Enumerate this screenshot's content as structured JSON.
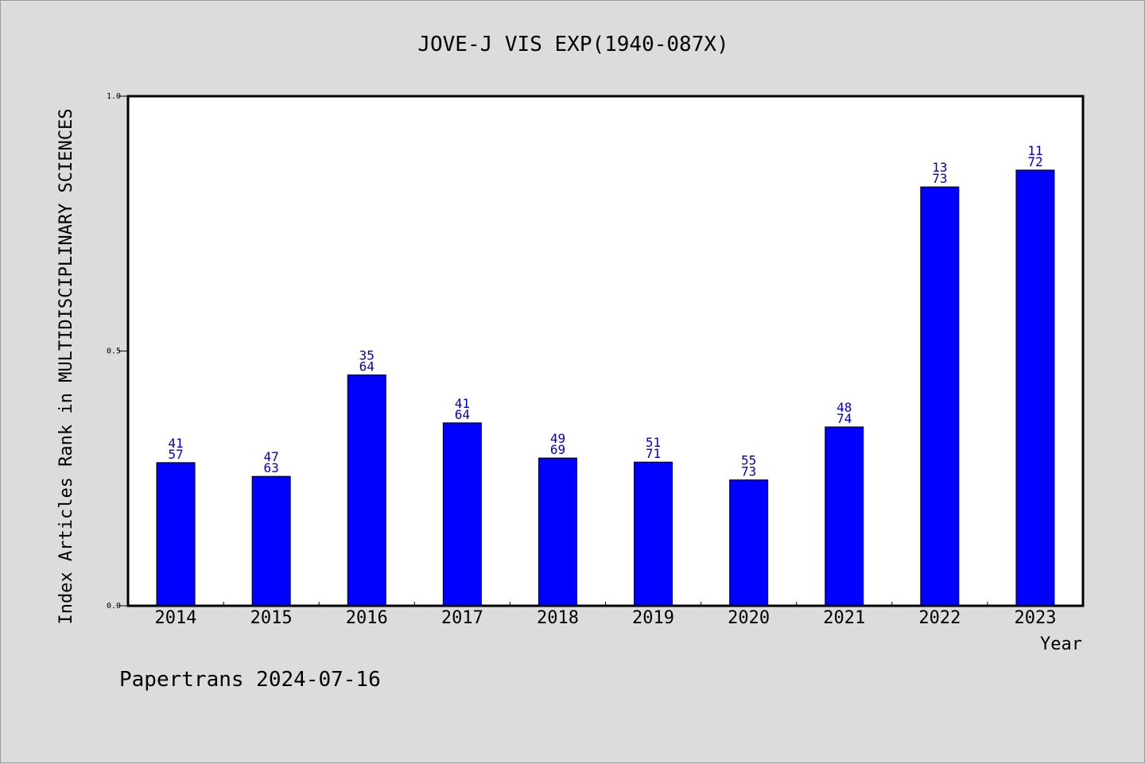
{
  "colors": {
    "background": "#dcdcdc",
    "plot_background": "#ffffff",
    "bar": "#0000ff",
    "label": "#0000cc"
  },
  "footer": "Papertrans 2024-07-16",
  "chart_data": {
    "type": "bar",
    "title": "JOVE-J VIS EXP(1940-087X)",
    "xlabel": "Year",
    "ylabel": "Index Articles Rank in MULTIDISCIPLINARY SCIENCES",
    "ylim": [
      0,
      1
    ],
    "yticks": [
      "0.0",
      "0.5",
      "1.0"
    ],
    "grid": false,
    "categories": [
      "2014",
      "2015",
      "2016",
      "2017",
      "2018",
      "2019",
      "2020",
      "2021",
      "2022",
      "2023"
    ],
    "values": [
      0.281,
      0.254,
      0.453,
      0.359,
      0.29,
      0.282,
      0.247,
      0.351,
      0.822,
      0.855
    ],
    "rank": [
      "41",
      "47",
      "35",
      "41",
      "49",
      "51",
      "55",
      "48",
      "13",
      "11"
    ],
    "total": [
      "57",
      "63",
      "64",
      "64",
      "69",
      "71",
      "73",
      "74",
      "73",
      "72"
    ]
  }
}
